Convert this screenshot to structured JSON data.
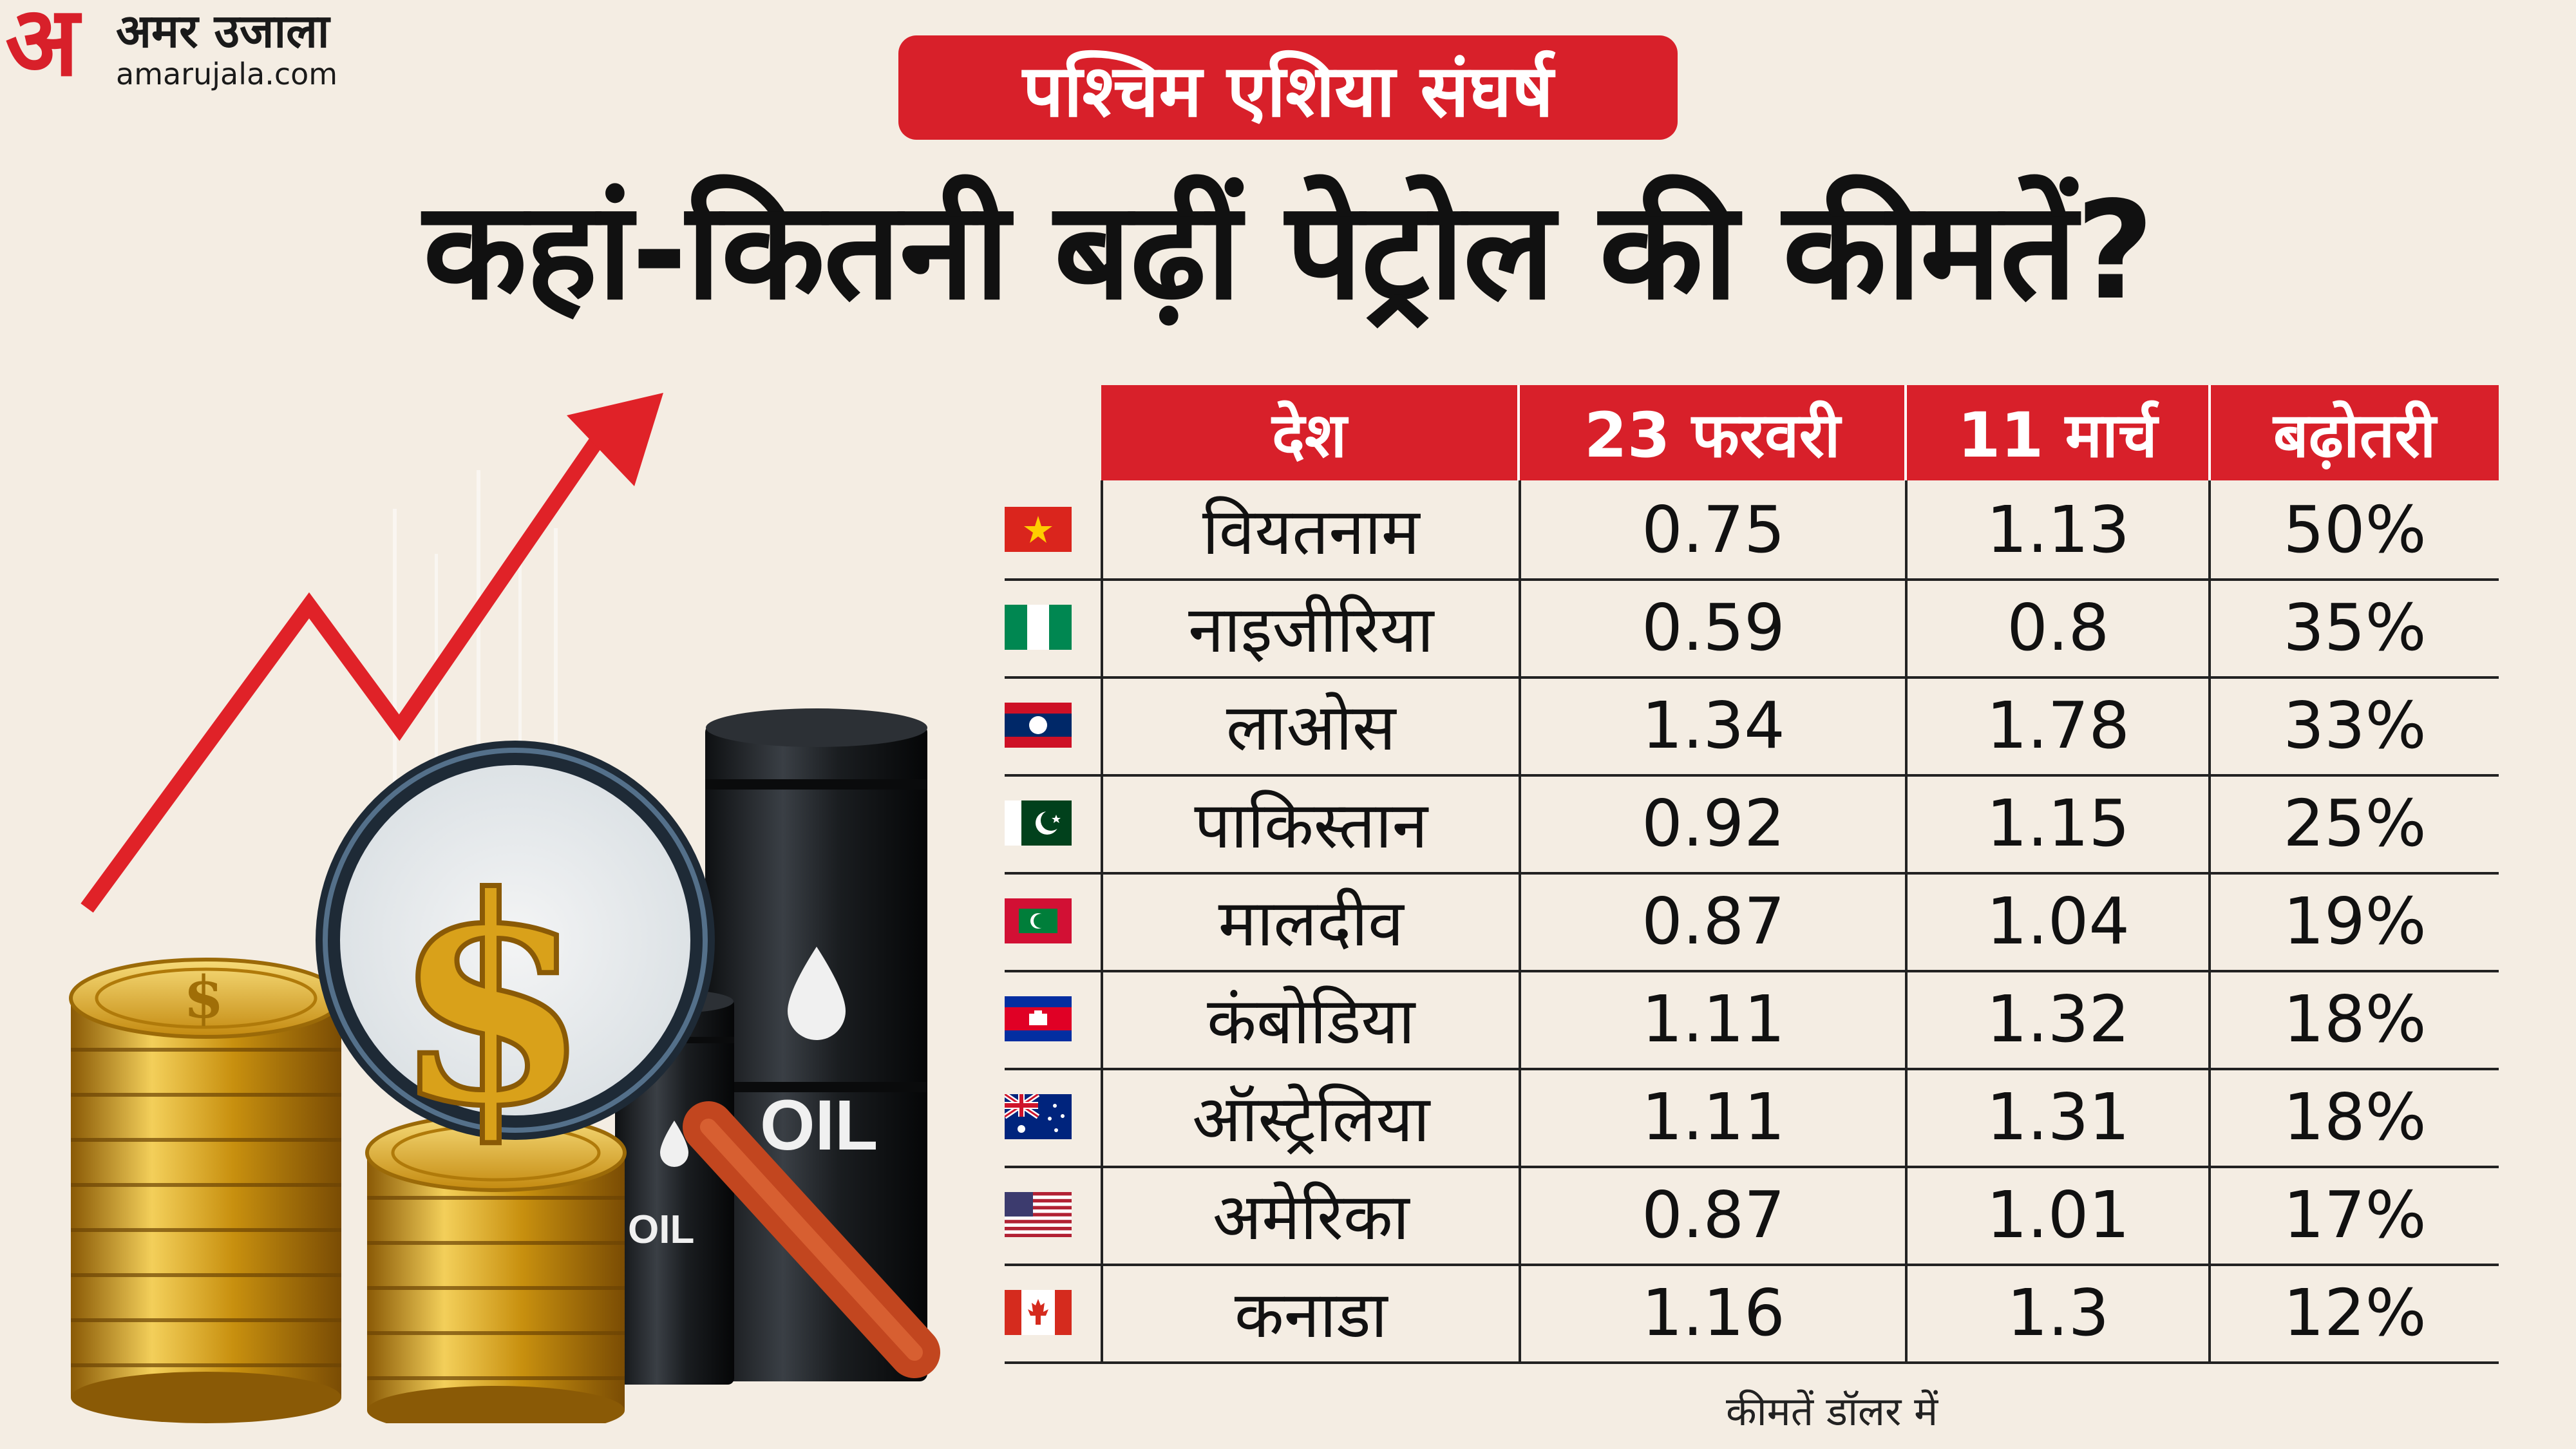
{
  "logo": {
    "brand_hindi": "अमर उजाला",
    "brand_letter": "अ",
    "brand_url": "amarujala.com"
  },
  "tag": "पश्चिम एशिया संघर्ष",
  "headline": "कहां-कितनी बढ़ीं पेट्रोल की कीमतें?",
  "illustration": {
    "oil_label_big": "OIL",
    "oil_label_small": "OIL",
    "coin_symbol": "$",
    "icons": [
      "arrow-up-icon",
      "magnifier-icon",
      "coin-stack-icon",
      "oil-barrel-icon"
    ]
  },
  "table": {
    "headers": [
      "देश",
      "23 फरवरी",
      "11 मार्च",
      "बढ़ोतरी"
    ],
    "rows": [
      {
        "flag": "vietnam",
        "country": "वियतनाम",
        "feb23": "0.75",
        "mar11": "1.13",
        "increase": "50%"
      },
      {
        "flag": "nigeria",
        "country": "नाइजीरिया",
        "feb23": "0.59",
        "mar11": "0.8",
        "increase": "35%"
      },
      {
        "flag": "laos",
        "country": "लाओस",
        "feb23": "1.34",
        "mar11": "1.78",
        "increase": "33%"
      },
      {
        "flag": "pakistan",
        "country": "पाकिस्तान",
        "feb23": "0.92",
        "mar11": "1.15",
        "increase": "25%"
      },
      {
        "flag": "maldives",
        "country": "मालदीव",
        "feb23": "0.87",
        "mar11": "1.04",
        "increase": "19%"
      },
      {
        "flag": "cambodia",
        "country": "कंबोडिया",
        "feb23": "1.11",
        "mar11": "1.32",
        "increase": "18%"
      },
      {
        "flag": "australia",
        "country": "ऑस्ट्रेलिया",
        "feb23": "1.11",
        "mar11": "1.31",
        "increase": "18%"
      },
      {
        "flag": "usa",
        "country": "अमेरिका",
        "feb23": "0.87",
        "mar11": "1.01",
        "increase": "17%"
      },
      {
        "flag": "canada",
        "country": "कनाडा",
        "feb23": "1.16",
        "mar11": "1.3",
        "increase": "12%"
      }
    ]
  },
  "footnote": "कीमतें डॉलर में",
  "colors": {
    "accent": "#d8202a",
    "background": "#f4ede3",
    "text": "#111111",
    "gold": "#d4a21a",
    "barrel": "#1f2226"
  }
}
